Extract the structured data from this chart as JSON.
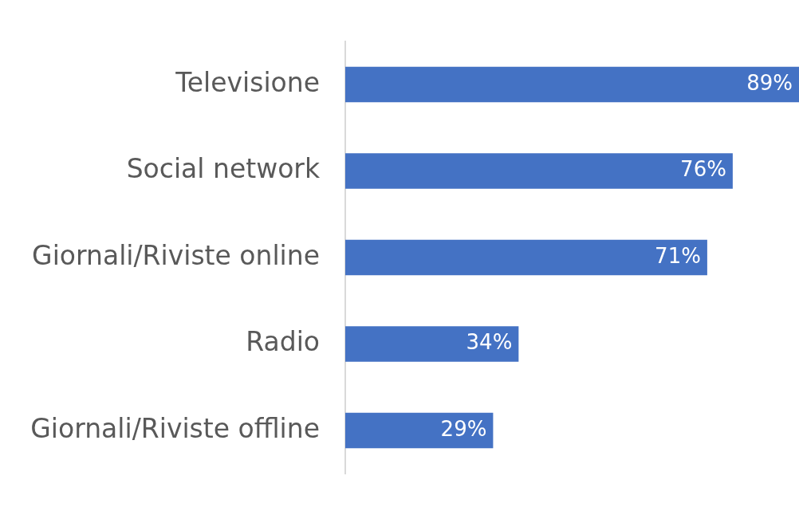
{
  "chart_data": {
    "type": "bar",
    "orientation": "horizontal",
    "categories": [
      "Televisione",
      "Social network",
      "Giornali/Riviste online",
      "Radio",
      "Giornali/Riviste offline"
    ],
    "values": [
      89,
      76,
      71,
      34,
      29
    ],
    "value_labels": [
      "89%",
      "76%",
      "71%",
      "34%",
      "29%"
    ],
    "color": "#4472c4",
    "grid": false,
    "legend": false,
    "tick_labels": "y"
  }
}
